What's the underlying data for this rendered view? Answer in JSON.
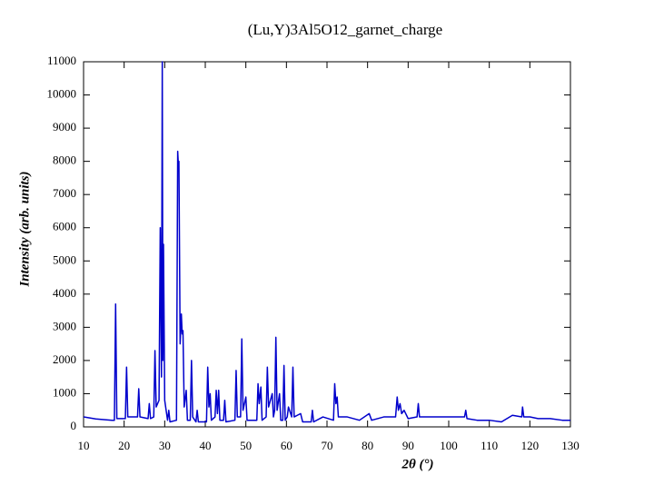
{
  "chart_data": {
    "type": "line",
    "title": "(Lu,Y)3Al5O12_garnet_charge",
    "x_label": "2θ (°)",
    "y_label": "Intensity (arb. units)",
    "xlim": [
      10,
      130
    ],
    "xticks": [
      10,
      20,
      30,
      40,
      50,
      60,
      70,
      80,
      90,
      100,
      110,
      120,
      130
    ],
    "ylim": [
      0,
      11000
    ],
    "yticks": [
      0,
      1000,
      2000,
      3000,
      4000,
      5000,
      6000,
      7000,
      8000,
      9000,
      10000,
      11000
    ],
    "grid": false,
    "series": [
      {
        "color": "#0000cc",
        "x": [
          10,
          11,
          12,
          13,
          15,
          17,
          17.6,
          17.9,
          18.2,
          20.3,
          20.6,
          20.9,
          23.3,
          23.6,
          23.9,
          25.9,
          26.2,
          26.5,
          27.3,
          27.6,
          27.9,
          28.6,
          28.9,
          29.2,
          29.4,
          29.55,
          29.7,
          30,
          30.7,
          31,
          31.3,
          32.9,
          33.2,
          33.4,
          33.5,
          33.8,
          34.1,
          34.3,
          34.5,
          34.8,
          35.3,
          35.6,
          36.3,
          36.6,
          36.9,
          37.7,
          38,
          38.3,
          40.3,
          40.6,
          40.9,
          41.2,
          41.5,
          42.4,
          42.7,
          43,
          43.3,
          43.6,
          44.5,
          44.8,
          45.1,
          47.3,
          47.6,
          47.9,
          48.7,
          49,
          49.3,
          50,
          50.3,
          52.7,
          53,
          53.3,
          53.7,
          54,
          55,
          55.3,
          55.6,
          56.5,
          56.8,
          57.1,
          57.4,
          57.7,
          58.3,
          58.6,
          59.1,
          59.4,
          59.7,
          60.2,
          60.5,
          61.3,
          61.6,
          61.9,
          63.5,
          64,
          66.1,
          66.4,
          66.7,
          69,
          71.6,
          71.9,
          72.2,
          72.5,
          72.8,
          75,
          78,
          80.4,
          81,
          84,
          86.9,
          87.3,
          87.6,
          88,
          88.4,
          89,
          90,
          92.2,
          92.5,
          92.8,
          96,
          100,
          103.9,
          104.2,
          104.5,
          107,
          110,
          113,
          115.7,
          118,
          118.2,
          118.5,
          120,
          122,
          125,
          128,
          130
        ],
        "values": [
          300,
          280,
          260,
          240,
          220,
          200,
          200,
          3700,
          250,
          250,
          1800,
          300,
          300,
          1150,
          300,
          250,
          700,
          250,
          300,
          2300,
          600,
          800,
          6000,
          1500,
          11000,
          2000,
          5500,
          800,
          200,
          500,
          150,
          200,
          8300,
          7800,
          8000,
          2500,
          3400,
          2800,
          2900,
          600,
          1100,
          200,
          200,
          2000,
          300,
          150,
          500,
          150,
          150,
          1800,
          600,
          1000,
          200,
          300,
          1100,
          400,
          1100,
          200,
          200,
          800,
          150,
          200,
          1700,
          300,
          300,
          2650,
          500,
          900,
          200,
          200,
          1300,
          700,
          1200,
          200,
          300,
          1800,
          600,
          1000,
          300,
          500,
          2700,
          500,
          1000,
          200,
          200,
          1850,
          200,
          300,
          600,
          300,
          1800,
          300,
          400,
          150,
          150,
          500,
          150,
          300,
          200,
          1300,
          700,
          900,
          300,
          300,
          200,
          400,
          200,
          300,
          300,
          900,
          500,
          700,
          400,
          500,
          250,
          300,
          700,
          300,
          300,
          300,
          300,
          500,
          250,
          200,
          200,
          150,
          350,
          300,
          600,
          300,
          300,
          250,
          250,
          200,
          200
        ]
      }
    ]
  }
}
